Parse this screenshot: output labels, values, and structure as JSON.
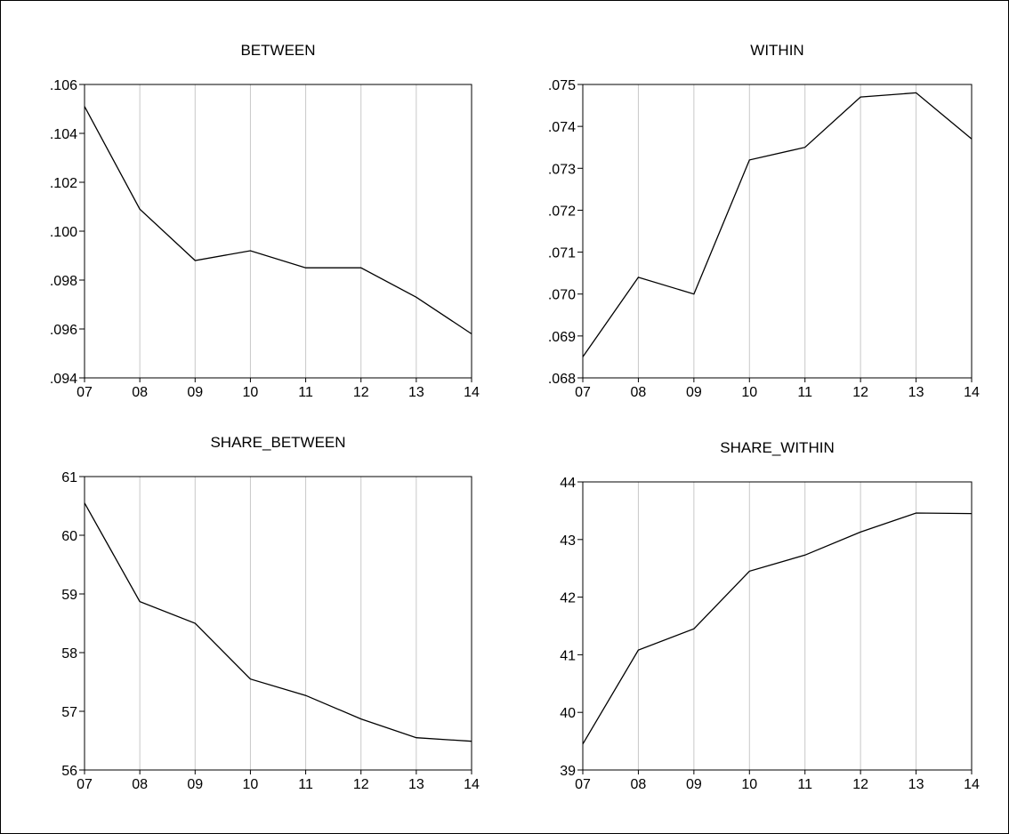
{
  "colors": {
    "line": "#000000",
    "grid": "#c8c8c8",
    "frame": "#000000",
    "background": "#ffffff"
  },
  "chart_data": [
    {
      "type": "line",
      "title": "BETWEEN",
      "categories": [
        "07",
        "08",
        "09",
        "10",
        "11",
        "12",
        "13",
        "14"
      ],
      "values": [
        0.1051,
        0.1009,
        0.0988,
        0.0992,
        0.0985,
        0.0985,
        0.0973,
        0.0958
      ],
      "ylim": [
        0.094,
        0.106
      ],
      "yticks": [
        0.094,
        0.096,
        0.098,
        0.1,
        0.102,
        0.104,
        0.106
      ],
      "yticklabels": [
        ".094",
        ".096",
        ".098",
        ".100",
        ".102",
        ".104",
        ".106"
      ],
      "xlabel": "",
      "ylabel": "",
      "grid": "vertical"
    },
    {
      "type": "line",
      "title": "WITHIN",
      "categories": [
        "07",
        "08",
        "09",
        "10",
        "11",
        "12",
        "13",
        "14"
      ],
      "values": [
        0.0685,
        0.0704,
        0.07,
        0.0732,
        0.0735,
        0.0747,
        0.0748,
        0.0737
      ],
      "ylim": [
        0.068,
        0.075
      ],
      "yticks": [
        0.068,
        0.069,
        0.07,
        0.071,
        0.072,
        0.073,
        0.074,
        0.075
      ],
      "yticklabels": [
        ".068",
        ".069",
        ".070",
        ".071",
        ".072",
        ".073",
        ".074",
        ".075"
      ],
      "xlabel": "",
      "ylabel": "",
      "grid": "vertical"
    },
    {
      "type": "line",
      "title": "SHARE_BETWEEN",
      "categories": [
        "07",
        "08",
        "09",
        "10",
        "11",
        "12",
        "13",
        "14"
      ],
      "values": [
        60.55,
        58.87,
        58.5,
        57.55,
        57.27,
        56.87,
        56.55,
        56.49
      ],
      "ylim": [
        56,
        61
      ],
      "yticks": [
        56,
        57,
        58,
        59,
        60,
        61
      ],
      "yticklabels": [
        "56",
        "57",
        "58",
        "59",
        "60",
        "61"
      ],
      "xlabel": "",
      "ylabel": "",
      "grid": "vertical"
    },
    {
      "type": "line",
      "title": "SHARE_WITHIN",
      "categories": [
        "07",
        "08",
        "09",
        "10",
        "11",
        "12",
        "13",
        "14"
      ],
      "values": [
        39.45,
        41.08,
        41.45,
        42.45,
        42.73,
        43.13,
        43.46,
        43.45
      ],
      "ylim": [
        39,
        44
      ],
      "yticks": [
        39,
        40,
        41,
        42,
        43,
        44
      ],
      "yticklabels": [
        "39",
        "40",
        "41",
        "42",
        "43",
        "44"
      ],
      "xlabel": "",
      "ylabel": "",
      "grid": "vertical"
    }
  ]
}
